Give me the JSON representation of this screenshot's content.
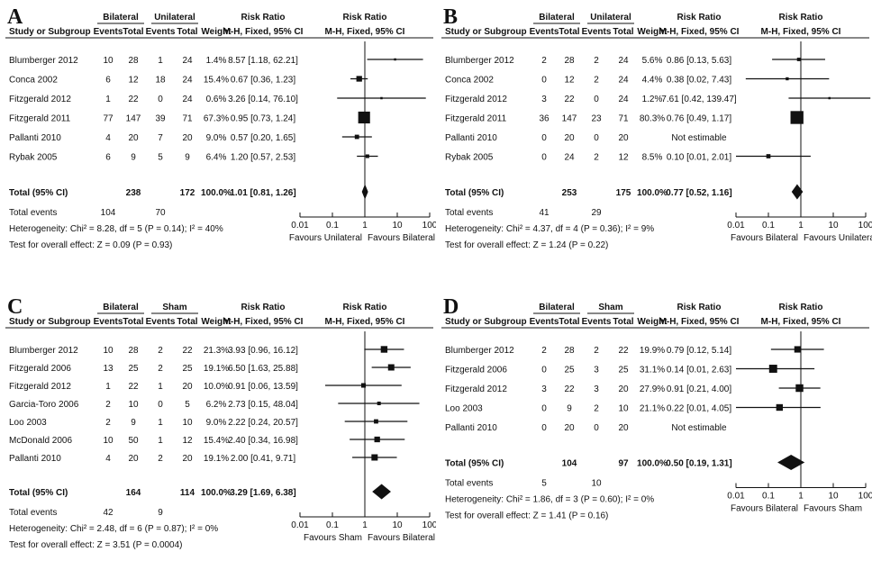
{
  "figure": {
    "type": "forest-plot-grid"
  },
  "chart_data": [
    {
      "type": "forest",
      "panel_letter": "A",
      "group1_label": "Bilateral",
      "group2_label": "Unilateral",
      "column_headers": {
        "study": "Study or Subgroup",
        "events": "Events",
        "total": "Total",
        "weight": "Weight",
        "rr_title": "Risk Ratio",
        "rr_method": "M-H, Fixed, 95% CI"
      },
      "studies": [
        {
          "name": "Blumberger 2012",
          "e1": "10",
          "t1": "28",
          "e2": "1",
          "t2": "24",
          "weight": "1.4%",
          "ci_text": "8.57 [1.18, 62.21]",
          "rr": 8.57,
          "lo": 1.18,
          "hi": 62.21,
          "w": 1.4
        },
        {
          "name": "Conca 2002",
          "e1": "6",
          "t1": "12",
          "e2": "18",
          "t2": "24",
          "weight": "15.4%",
          "ci_text": "0.67 [0.36, 1.23]",
          "rr": 0.67,
          "lo": 0.36,
          "hi": 1.23,
          "w": 15.4
        },
        {
          "name": "Fitzgerald 2012",
          "e1": "1",
          "t1": "22",
          "e2": "0",
          "t2": "24",
          "weight": "0.6%",
          "ci_text": "3.26 [0.14, 76.10]",
          "rr": 3.26,
          "lo": 0.14,
          "hi": 76.1,
          "w": 0.6
        },
        {
          "name": "Fitzgerald 2011",
          "e1": "77",
          "t1": "147",
          "e2": "39",
          "t2": "71",
          "weight": "67.3%",
          "ci_text": "0.95 [0.73, 1.24]",
          "rr": 0.95,
          "lo": 0.73,
          "hi": 1.24,
          "w": 67.3
        },
        {
          "name": "Pallanti 2010",
          "e1": "4",
          "t1": "20",
          "e2": "7",
          "t2": "20",
          "weight": "9.0%",
          "ci_text": "0.57 [0.20, 1.65]",
          "rr": 0.57,
          "lo": 0.2,
          "hi": 1.65,
          "w": 9.0
        },
        {
          "name": "Rybak 2005",
          "e1": "6",
          "t1": "9",
          "e2": "5",
          "t2": "9",
          "weight": "6.4%",
          "ci_text": "1.20 [0.57, 2.53]",
          "rr": 1.2,
          "lo": 0.57,
          "hi": 2.53,
          "w": 6.4
        }
      ],
      "total": {
        "label": "Total (95% CI)",
        "t1": "238",
        "t2": "172",
        "weight": "100.0%",
        "ci_text": "1.01 [0.81, 1.26]",
        "rr": 1.01,
        "lo": 0.81,
        "hi": 1.26
      },
      "total_events": {
        "label": "Total events",
        "e1": "104",
        "e2": "70"
      },
      "heterogeneity": "Heterogeneity: Chi² = 8.28, df = 5 (P = 0.14); I² = 40%",
      "overall_effect": "Test for overall effect: Z = 0.09 (P = 0.93)",
      "axis_ticks": [
        "0.01",
        "0.1",
        "1",
        "10",
        "100"
      ],
      "favours_left": "Favours Unilateral",
      "favours_right": "Favours Bilateral"
    },
    {
      "type": "forest",
      "panel_letter": "B",
      "group1_label": "Bilateral",
      "group2_label": "Unilateral",
      "column_headers": {
        "study": "Study or Subgroup",
        "events": "Events",
        "total": "Total",
        "weight": "Weight",
        "rr_title": "Risk Ratio",
        "rr_method": "M-H, Fixed, 95% CI"
      },
      "studies": [
        {
          "name": "Blumberger 2012",
          "e1": "2",
          "t1": "28",
          "e2": "2",
          "t2": "24",
          "weight": "5.6%",
          "ci_text": "0.86 [0.13, 5.63]",
          "rr": 0.86,
          "lo": 0.13,
          "hi": 5.63,
          "w": 5.6
        },
        {
          "name": "Conca 2002",
          "e1": "0",
          "t1": "12",
          "e2": "2",
          "t2": "24",
          "weight": "4.4%",
          "ci_text": "0.38 [0.02, 7.43]",
          "rr": 0.38,
          "lo": 0.02,
          "hi": 7.43,
          "w": 4.4
        },
        {
          "name": "Fitzgerald 2012",
          "e1": "3",
          "t1": "22",
          "e2": "0",
          "t2": "24",
          "weight": "1.2%",
          "ci_text": "7.61 [0.42, 139.47]",
          "rr": 7.61,
          "lo": 0.42,
          "hi": 139.47,
          "w": 1.2
        },
        {
          "name": "Fitzgerald 2011",
          "e1": "36",
          "t1": "147",
          "e2": "23",
          "t2": "71",
          "weight": "80.3%",
          "ci_text": "0.76 [0.49, 1.17]",
          "rr": 0.76,
          "lo": 0.49,
          "hi": 1.17,
          "w": 80.3
        },
        {
          "name": "Pallanti 2010",
          "e1": "0",
          "t1": "20",
          "e2": "0",
          "t2": "20",
          "weight": "",
          "ci_text": "Not estimable",
          "rr": null,
          "lo": null,
          "hi": null,
          "w": 0
        },
        {
          "name": "Rybak 2005",
          "e1": "0",
          "t1": "24",
          "e2": "2",
          "t2": "12",
          "weight": "8.5%",
          "ci_text": "0.10 [0.01, 2.01]",
          "rr": 0.1,
          "lo": 0.01,
          "hi": 2.01,
          "w": 8.5
        }
      ],
      "total": {
        "label": "Total (95% CI)",
        "t1": "253",
        "t2": "175",
        "weight": "100.0%",
        "ci_text": "0.77 [0.52, 1.16]",
        "rr": 0.77,
        "lo": 0.52,
        "hi": 1.16
      },
      "total_events": {
        "label": "Total events",
        "e1": "41",
        "e2": "29"
      },
      "heterogeneity": "Heterogeneity: Chi² = 4.37, df = 4 (P = 0.36); I² = 9%",
      "overall_effect": "Test for overall effect: Z = 1.24 (P = 0.22)",
      "axis_ticks": [
        "0.01",
        "0.1",
        "1",
        "10",
        "100"
      ],
      "favours_left": "Favours Bilateral",
      "favours_right": "Favours Unilateral"
    },
    {
      "type": "forest",
      "panel_letter": "C",
      "group1_label": "Bilateral",
      "group2_label": "Sham",
      "column_headers": {
        "study": "Study or Subgroup",
        "events": "Events",
        "total": "Total",
        "weight": "Weight",
        "rr_title": "Risk Ratio",
        "rr_method": "M-H, Fixed, 95% CI"
      },
      "studies": [
        {
          "name": "Blumberger 2012",
          "e1": "10",
          "t1": "28",
          "e2": "2",
          "t2": "22",
          "weight": "21.3%",
          "ci_text": "3.93 [0.96, 16.12]",
          "rr": 3.93,
          "lo": 0.96,
          "hi": 16.12,
          "w": 21.3
        },
        {
          "name": "Fitzgerald 2006",
          "e1": "13",
          "t1": "25",
          "e2": "2",
          "t2": "25",
          "weight": "19.1%",
          "ci_text": "6.50 [1.63, 25.88]",
          "rr": 6.5,
          "lo": 1.63,
          "hi": 25.88,
          "w": 19.1
        },
        {
          "name": "Fitzgerald 2012",
          "e1": "1",
          "t1": "22",
          "e2": "1",
          "t2": "20",
          "weight": "10.0%",
          "ci_text": "0.91 [0.06, 13.59]",
          "rr": 0.91,
          "lo": 0.06,
          "hi": 13.59,
          "w": 10.0
        },
        {
          "name": "Garcia-Toro 2006",
          "e1": "2",
          "t1": "10",
          "e2": "0",
          "t2": "5",
          "weight": "6.2%",
          "ci_text": "2.73 [0.15, 48.04]",
          "rr": 2.73,
          "lo": 0.15,
          "hi": 48.04,
          "w": 6.2
        },
        {
          "name": "Loo 2003",
          "e1": "2",
          "t1": "9",
          "e2": "1",
          "t2": "10",
          "weight": "9.0%",
          "ci_text": "2.22 [0.24, 20.57]",
          "rr": 2.22,
          "lo": 0.24,
          "hi": 20.57,
          "w": 9.0
        },
        {
          "name": "McDonald 2006",
          "e1": "10",
          "t1": "50",
          "e2": "1",
          "t2": "12",
          "weight": "15.4%",
          "ci_text": "2.40 [0.34, 16.98]",
          "rr": 2.4,
          "lo": 0.34,
          "hi": 16.98,
          "w": 15.4
        },
        {
          "name": "Pallanti 2010",
          "e1": "4",
          "t1": "20",
          "e2": "2",
          "t2": "20",
          "weight": "19.1%",
          "ci_text": "2.00 [0.41, 9.71]",
          "rr": 2.0,
          "lo": 0.41,
          "hi": 9.71,
          "w": 19.1
        }
      ],
      "total": {
        "label": "Total (95% CI)",
        "t1": "164",
        "t2": "114",
        "weight": "100.0%",
        "ci_text": "3.29 [1.69, 6.38]",
        "rr": 3.29,
        "lo": 1.69,
        "hi": 6.38
      },
      "total_events": {
        "label": "Total events",
        "e1": "42",
        "e2": "9"
      },
      "heterogeneity": "Heterogeneity: Chi² = 2.48, df = 6 (P = 0.87); I² = 0%",
      "overall_effect": "Test for overall effect: Z = 3.51 (P = 0.0004)",
      "axis_ticks": [
        "0.01",
        "0.1",
        "1",
        "10",
        "100"
      ],
      "favours_left": "Favours Sham",
      "favours_right": "Favours Bilateral"
    },
    {
      "type": "forest",
      "panel_letter": "D",
      "group1_label": "Bilateral",
      "group2_label": "Sham",
      "column_headers": {
        "study": "Study or Subgroup",
        "events": "Events",
        "total": "Total",
        "weight": "Weight",
        "rr_title": "Risk Ratio",
        "rr_method": "M-H, Fixed, 95% CI"
      },
      "studies": [
        {
          "name": "Blumberger 2012",
          "e1": "2",
          "t1": "28",
          "e2": "2",
          "t2": "22",
          "weight": "19.9%",
          "ci_text": "0.79 [0.12, 5.14]",
          "rr": 0.79,
          "lo": 0.12,
          "hi": 5.14,
          "w": 19.9
        },
        {
          "name": "Fitzgerald 2006",
          "e1": "0",
          "t1": "25",
          "e2": "3",
          "t2": "25",
          "weight": "31.1%",
          "ci_text": "0.14 [0.01, 2.63]",
          "rr": 0.14,
          "lo": 0.01,
          "hi": 2.63,
          "w": 31.1
        },
        {
          "name": "Fitzgerald 2012",
          "e1": "3",
          "t1": "22",
          "e2": "3",
          "t2": "20",
          "weight": "27.9%",
          "ci_text": "0.91 [0.21, 4.00]",
          "rr": 0.91,
          "lo": 0.21,
          "hi": 4.0,
          "w": 27.9
        },
        {
          "name": "Loo 2003",
          "e1": "0",
          "t1": "9",
          "e2": "2",
          "t2": "10",
          "weight": "21.1%",
          "ci_text": "0.22 [0.01, 4.05]",
          "rr": 0.22,
          "lo": 0.01,
          "hi": 4.05,
          "w": 21.1
        },
        {
          "name": "Pallanti 2010",
          "e1": "0",
          "t1": "20",
          "e2": "0",
          "t2": "20",
          "weight": "",
          "ci_text": "Not estimable",
          "rr": null,
          "lo": null,
          "hi": null,
          "w": 0
        }
      ],
      "total": {
        "label": "Total (95% CI)",
        "t1": "104",
        "t2": "97",
        "weight": "100.0%",
        "ci_text": "0.50 [0.19, 1.31]",
        "rr": 0.5,
        "lo": 0.19,
        "hi": 1.31
      },
      "total_events": {
        "label": "Total events",
        "e1": "5",
        "e2": "10"
      },
      "heterogeneity": "Heterogeneity: Chi² = 1.86, df = 3 (P = 0.60); I² = 0%",
      "overall_effect": "Test for overall effect: Z = 1.41 (P = 0.16)",
      "axis_ticks": [
        "0.01",
        "0.1",
        "1",
        "10",
        "100"
      ],
      "favours_left": "Favours Bilateral",
      "favours_right": "Favours Sham"
    }
  ]
}
